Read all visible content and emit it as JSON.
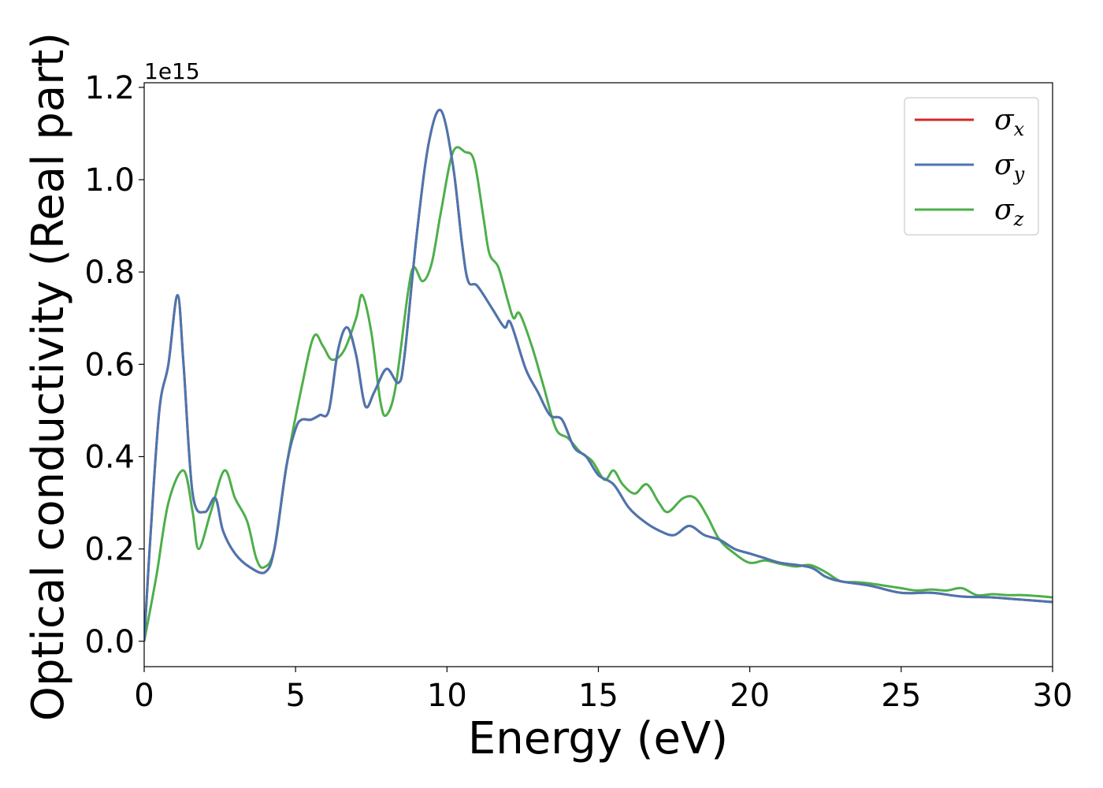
{
  "chart_data": {
    "type": "line",
    "xlabel": "Energy (eV)",
    "ylabel": "Optical conductivity (Real part)",
    "y_offset_label": "1e15",
    "xlim": [
      0,
      30
    ],
    "ylim": [
      -0.055,
      1.21
    ],
    "x_ticks": [
      0,
      5,
      10,
      15,
      20,
      25,
      30
    ],
    "x_tick_labels": [
      "0",
      "5",
      "10",
      "15",
      "20",
      "25",
      "30"
    ],
    "y_ticks": [
      0.0,
      0.2,
      0.4,
      0.6,
      0.8,
      1.0,
      1.2
    ],
    "y_tick_labels": [
      "0.0",
      "0.2",
      "0.4",
      "0.6",
      "0.8",
      "1.0",
      "1.2"
    ],
    "grid": false,
    "legend_position": "top-right",
    "series": [
      {
        "name": "σx",
        "symbol": "σ",
        "subscript": "x",
        "color": "#d62728",
        "points": [
          [
            0,
            0.0
          ],
          [
            0.2,
            0.22
          ],
          [
            0.5,
            0.5
          ],
          [
            0.8,
            0.6
          ],
          [
            1.1,
            0.75
          ],
          [
            1.3,
            0.6
          ],
          [
            1.6,
            0.32
          ],
          [
            2.0,
            0.28
          ],
          [
            2.35,
            0.31
          ],
          [
            2.6,
            0.24
          ],
          [
            3.0,
            0.19
          ],
          [
            3.5,
            0.16
          ],
          [
            4.0,
            0.15
          ],
          [
            4.3,
            0.2
          ],
          [
            4.7,
            0.38
          ],
          [
            5.0,
            0.46
          ],
          [
            5.2,
            0.48
          ],
          [
            5.5,
            0.48
          ],
          [
            5.8,
            0.49
          ],
          [
            6.1,
            0.5
          ],
          [
            6.4,
            0.63
          ],
          [
            6.7,
            0.68
          ],
          [
            7.0,
            0.62
          ],
          [
            7.3,
            0.51
          ],
          [
            7.6,
            0.54
          ],
          [
            8.0,
            0.59
          ],
          [
            8.4,
            0.56
          ],
          [
            8.6,
            0.62
          ],
          [
            9.0,
            0.88
          ],
          [
            9.4,
            1.08
          ],
          [
            9.8,
            1.15
          ],
          [
            10.2,
            1.03
          ],
          [
            10.5,
            0.86
          ],
          [
            10.7,
            0.78
          ],
          [
            11.0,
            0.77
          ],
          [
            11.5,
            0.72
          ],
          [
            11.9,
            0.68
          ],
          [
            12.1,
            0.69
          ],
          [
            12.6,
            0.59
          ],
          [
            13.0,
            0.54
          ],
          [
            13.4,
            0.49
          ],
          [
            13.8,
            0.48
          ],
          [
            14.2,
            0.42
          ],
          [
            14.6,
            0.4
          ],
          [
            15.0,
            0.36
          ],
          [
            15.5,
            0.34
          ],
          [
            16.0,
            0.29
          ],
          [
            16.5,
            0.26
          ],
          [
            17.0,
            0.24
          ],
          [
            17.5,
            0.23
          ],
          [
            18.0,
            0.25
          ],
          [
            18.5,
            0.23
          ],
          [
            19.0,
            0.22
          ],
          [
            19.5,
            0.2
          ],
          [
            20.0,
            0.19
          ],
          [
            20.5,
            0.18
          ],
          [
            21.0,
            0.17
          ],
          [
            22.0,
            0.16
          ],
          [
            22.5,
            0.14
          ],
          [
            23.0,
            0.13
          ],
          [
            24.0,
            0.12
          ],
          [
            25.0,
            0.105
          ],
          [
            26.0,
            0.105
          ],
          [
            27.0,
            0.097
          ],
          [
            28.0,
            0.095
          ],
          [
            29.0,
            0.09
          ],
          [
            30.0,
            0.085
          ]
        ]
      },
      {
        "name": "σy",
        "symbol": "σ",
        "subscript": "y",
        "color": "#4a76b0",
        "points": [
          [
            0,
            0.0
          ],
          [
            0.2,
            0.22
          ],
          [
            0.5,
            0.5
          ],
          [
            0.8,
            0.6
          ],
          [
            1.1,
            0.75
          ],
          [
            1.3,
            0.6
          ],
          [
            1.6,
            0.32
          ],
          [
            2.0,
            0.28
          ],
          [
            2.35,
            0.31
          ],
          [
            2.6,
            0.24
          ],
          [
            3.0,
            0.19
          ],
          [
            3.5,
            0.16
          ],
          [
            4.0,
            0.15
          ],
          [
            4.3,
            0.2
          ],
          [
            4.7,
            0.38
          ],
          [
            5.0,
            0.46
          ],
          [
            5.2,
            0.48
          ],
          [
            5.5,
            0.48
          ],
          [
            5.8,
            0.49
          ],
          [
            6.1,
            0.5
          ],
          [
            6.4,
            0.63
          ],
          [
            6.7,
            0.68
          ],
          [
            7.0,
            0.62
          ],
          [
            7.3,
            0.51
          ],
          [
            7.6,
            0.54
          ],
          [
            8.0,
            0.59
          ],
          [
            8.4,
            0.56
          ],
          [
            8.6,
            0.62
          ],
          [
            9.0,
            0.88
          ],
          [
            9.4,
            1.08
          ],
          [
            9.8,
            1.15
          ],
          [
            10.2,
            1.03
          ],
          [
            10.5,
            0.86
          ],
          [
            10.7,
            0.78
          ],
          [
            11.0,
            0.77
          ],
          [
            11.5,
            0.72
          ],
          [
            11.9,
            0.68
          ],
          [
            12.1,
            0.69
          ],
          [
            12.6,
            0.59
          ],
          [
            13.0,
            0.54
          ],
          [
            13.4,
            0.49
          ],
          [
            13.8,
            0.48
          ],
          [
            14.2,
            0.42
          ],
          [
            14.6,
            0.4
          ],
          [
            15.0,
            0.36
          ],
          [
            15.5,
            0.34
          ],
          [
            16.0,
            0.29
          ],
          [
            16.5,
            0.26
          ],
          [
            17.0,
            0.24
          ],
          [
            17.5,
            0.23
          ],
          [
            18.0,
            0.25
          ],
          [
            18.5,
            0.23
          ],
          [
            19.0,
            0.22
          ],
          [
            19.5,
            0.2
          ],
          [
            20.0,
            0.19
          ],
          [
            20.5,
            0.18
          ],
          [
            21.0,
            0.17
          ],
          [
            22.0,
            0.16
          ],
          [
            22.5,
            0.14
          ],
          [
            23.0,
            0.13
          ],
          [
            24.0,
            0.12
          ],
          [
            25.0,
            0.105
          ],
          [
            26.0,
            0.105
          ],
          [
            27.0,
            0.097
          ],
          [
            28.0,
            0.095
          ],
          [
            29.0,
            0.09
          ],
          [
            30.0,
            0.085
          ]
        ]
      },
      {
        "name": "σz",
        "symbol": "σ",
        "subscript": "z",
        "color": "#4daf4a",
        "points": [
          [
            0,
            0.0
          ],
          [
            0.4,
            0.14
          ],
          [
            0.8,
            0.3
          ],
          [
            1.3,
            0.37
          ],
          [
            1.6,
            0.28
          ],
          [
            1.8,
            0.2
          ],
          [
            2.2,
            0.28
          ],
          [
            2.65,
            0.37
          ],
          [
            3.0,
            0.31
          ],
          [
            3.4,
            0.26
          ],
          [
            3.7,
            0.18
          ],
          [
            3.95,
            0.16
          ],
          [
            4.3,
            0.2
          ],
          [
            4.7,
            0.38
          ],
          [
            5.2,
            0.55
          ],
          [
            5.6,
            0.66
          ],
          [
            5.9,
            0.64
          ],
          [
            6.2,
            0.61
          ],
          [
            6.6,
            0.63
          ],
          [
            7.0,
            0.7
          ],
          [
            7.2,
            0.75
          ],
          [
            7.5,
            0.67
          ],
          [
            7.8,
            0.52
          ],
          [
            8.0,
            0.49
          ],
          [
            8.3,
            0.55
          ],
          [
            8.7,
            0.75
          ],
          [
            8.9,
            0.81
          ],
          [
            9.2,
            0.78
          ],
          [
            9.5,
            0.82
          ],
          [
            9.8,
            0.93
          ],
          [
            10.2,
            1.06
          ],
          [
            10.6,
            1.06
          ],
          [
            10.9,
            1.04
          ],
          [
            11.2,
            0.92
          ],
          [
            11.4,
            0.84
          ],
          [
            11.7,
            0.81
          ],
          [
            12.0,
            0.74
          ],
          [
            12.2,
            0.7
          ],
          [
            12.4,
            0.71
          ],
          [
            12.8,
            0.64
          ],
          [
            13.2,
            0.55
          ],
          [
            13.6,
            0.46
          ],
          [
            14.0,
            0.44
          ],
          [
            14.4,
            0.41
          ],
          [
            14.8,
            0.39
          ],
          [
            15.2,
            0.35
          ],
          [
            15.5,
            0.37
          ],
          [
            15.8,
            0.34
          ],
          [
            16.2,
            0.32
          ],
          [
            16.6,
            0.34
          ],
          [
            17.0,
            0.3
          ],
          [
            17.3,
            0.28
          ],
          [
            17.8,
            0.31
          ],
          [
            18.2,
            0.31
          ],
          [
            18.6,
            0.27
          ],
          [
            19.0,
            0.22
          ],
          [
            19.5,
            0.19
          ],
          [
            20.0,
            0.17
          ],
          [
            20.5,
            0.175
          ],
          [
            21.0,
            0.168
          ],
          [
            21.5,
            0.162
          ],
          [
            22.0,
            0.165
          ],
          [
            22.5,
            0.15
          ],
          [
            23.0,
            0.13
          ],
          [
            23.5,
            0.128
          ],
          [
            24.0,
            0.125
          ],
          [
            24.5,
            0.12
          ],
          [
            25.0,
            0.115
          ],
          [
            25.5,
            0.11
          ],
          [
            26.0,
            0.112
          ],
          [
            26.5,
            0.11
          ],
          [
            27.0,
            0.115
          ],
          [
            27.5,
            0.1
          ],
          [
            28.0,
            0.102
          ],
          [
            28.5,
            0.1
          ],
          [
            29.0,
            0.1
          ],
          [
            29.5,
            0.098
          ],
          [
            30.0,
            0.095
          ]
        ]
      }
    ]
  }
}
